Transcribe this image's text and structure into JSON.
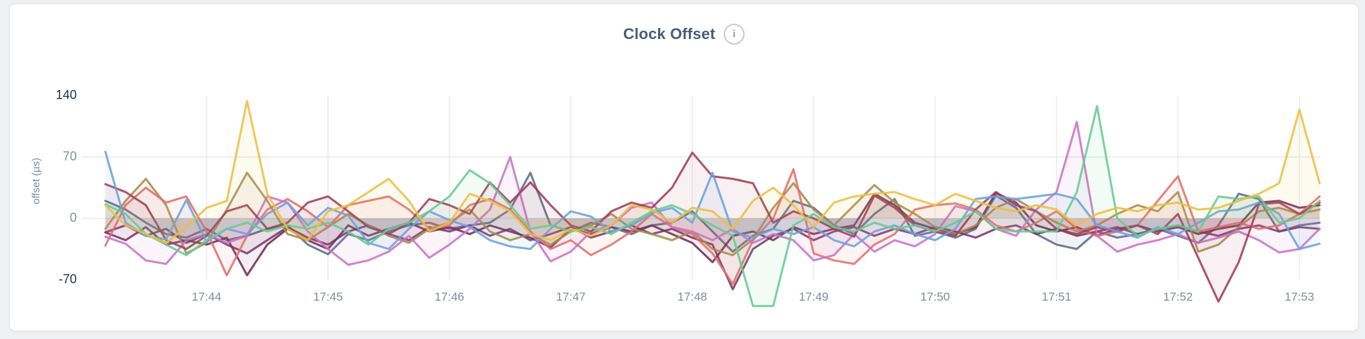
{
  "header": {
    "title": "Clock Offset",
    "info_icon_label": "i"
  },
  "chart_data": {
    "type": "line",
    "title": "Clock Offset",
    "xlabel": "",
    "ylabel": "offset (µs)",
    "ylim": [
      -70,
      140
    ],
    "grid": "on",
    "legend": "none",
    "x_start": "17:43:10",
    "x_step_seconds": 10,
    "x_tick_labels": [
      "17:44",
      "17:45",
      "17:46",
      "17:47",
      "17:48",
      "17:49",
      "17:50",
      "17:51",
      "17:52",
      "17:53"
    ],
    "y_ticks": [
      {
        "value": 140,
        "label": "140",
        "strong": true,
        "grid": false
      },
      {
        "value": 70,
        "label": "70",
        "strong": false,
        "grid": true
      },
      {
        "value": 0,
        "label": "0",
        "strong": false,
        "grid": true
      },
      {
        "value": -70,
        "label": "-70",
        "strong": true,
        "grid": false
      }
    ],
    "series": [
      {
        "name": "series-slate",
        "color": "#5e6b87",
        "values": [
          20,
          10,
          -5,
          -18,
          -22,
          -12,
          -25,
          -20,
          -12,
          -8,
          -30,
          -41,
          -18,
          -25,
          -15,
          -8,
          -5,
          -12,
          -8,
          -5,
          10,
          52,
          -8,
          -15,
          -5,
          -10,
          -18,
          -8,
          -5,
          8,
          -15,
          -38,
          -20,
          -12,
          20,
          12,
          -8,
          -18,
          5,
          22,
          -20,
          -15,
          -22,
          -12,
          26,
          12,
          -18,
          -30,
          -35,
          -15,
          -22,
          -18,
          -12,
          -20,
          -28,
          -8,
          28,
          22,
          -15,
          -8,
          -5
        ]
      },
      {
        "name": "series-violet",
        "color": "#7a3569",
        "values": [
          -16,
          -8,
          -20,
          -12,
          -28,
          -18,
          -30,
          -40,
          -25,
          -10,
          -22,
          -30,
          -15,
          -8,
          -18,
          -25,
          -10,
          -15,
          -8,
          -20,
          -12,
          -25,
          -18,
          -10,
          -22,
          -15,
          -8,
          -18,
          -12,
          -22,
          -30,
          -81,
          -35,
          -20,
          -12,
          -25,
          -15,
          -10,
          -20,
          -12,
          -18,
          -10,
          -15,
          -22,
          -12,
          -8,
          -18,
          -12,
          -20,
          -15,
          -10,
          -18,
          -12,
          -8,
          -15,
          -20,
          -12,
          -8,
          -15,
          -10,
          -12
        ]
      },
      {
        "name": "series-plum",
        "color": "#6f2b57",
        "values": [
          -16,
          -25,
          -10,
          -30,
          -25,
          -30,
          -22,
          -65,
          -30,
          -12,
          -25,
          -35,
          -8,
          -20,
          -12,
          -5,
          -15,
          -10,
          -18,
          -8,
          -15,
          -22,
          -33,
          -12,
          -18,
          -10,
          -15,
          -8,
          -18,
          -28,
          -50,
          -20,
          -15,
          -25,
          -10,
          -18,
          -12,
          -8,
          28,
          15,
          -5,
          -12,
          -18,
          -10,
          29,
          18,
          -8,
          -15,
          -10,
          -20,
          -12,
          -8,
          -15,
          -10,
          -18,
          -12,
          -8,
          18,
          20,
          12,
          15
        ]
      },
      {
        "name": "series-olive",
        "color": "#a78b4b",
        "values": [
          -12,
          20,
          45,
          15,
          -40,
          -28,
          10,
          52,
          20,
          -18,
          -25,
          -10,
          5,
          -8,
          -20,
          -28,
          -12,
          -5,
          10,
          -15,
          -25,
          -18,
          -30,
          -15,
          -8,
          5,
          -12,
          -18,
          -25,
          -15,
          -35,
          -42,
          -24,
          12,
          40,
          10,
          -8,
          15,
          38,
          18,
          5,
          -10,
          -18,
          -8,
          12,
          22,
          8,
          -5,
          -15,
          -8,
          5,
          15,
          8,
          30,
          -38,
          -30,
          -10,
          8,
          12,
          5,
          10
        ]
      },
      {
        "name": "series-salmon",
        "color": "#e26e69",
        "values": [
          -31,
          15,
          35,
          18,
          25,
          -15,
          -65,
          -20,
          10,
          22,
          8,
          -10,
          15,
          20,
          25,
          10,
          -12,
          -8,
          15,
          22,
          10,
          -15,
          -35,
          -25,
          -42,
          -30,
          -15,
          5,
          -10,
          -18,
          -40,
          -75,
          -25,
          0,
          56,
          -40,
          -48,
          -52,
          -30,
          -18,
          10,
          15,
          17,
          10,
          -8,
          -15,
          -5,
          8,
          -12,
          -20,
          -15,
          -8,
          20,
          48,
          -15,
          -10,
          -5,
          -12,
          -8,
          5,
          25
        ]
      },
      {
        "name": "series-orchid",
        "color": "#c873c4",
        "values": [
          -21,
          -29,
          -48,
          -52,
          -25,
          -18,
          -28,
          -20,
          25,
          18,
          -15,
          -35,
          -53,
          -48,
          -38,
          -20,
          -45,
          -30,
          -12,
          10,
          70,
          -15,
          -49,
          -38,
          -15,
          -8,
          12,
          18,
          -10,
          -15,
          -25,
          -12,
          -28,
          -18,
          -25,
          -48,
          -42,
          -18,
          -38,
          -25,
          -32,
          -18,
          14,
          8,
          -12,
          -20,
          10,
          30,
          110,
          -20,
          -38,
          -30,
          -25,
          -18,
          -28,
          -22,
          -15,
          -25,
          -39,
          -35,
          -12
        ]
      },
      {
        "name": "series-maroon",
        "color": "#a13b55",
        "values": [
          39,
          30,
          15,
          -25,
          -35,
          -20,
          8,
          15,
          -12,
          -5,
          18,
          25,
          8,
          -10,
          -18,
          -5,
          22,
          15,
          5,
          41,
          18,
          41,
          15,
          -8,
          -15,
          8,
          18,
          12,
          35,
          75,
          48,
          45,
          40,
          -5,
          8,
          0,
          -12,
          -21,
          26,
          12,
          -8,
          -15,
          -20,
          10,
          30,
          15,
          8,
          -12,
          -18,
          -10,
          -15,
          -8,
          -18,
          5,
          -45,
          -95,
          -50,
          16,
          18,
          5,
          18
        ]
      },
      {
        "name": "series-blue",
        "color": "#6ba2dc",
        "values": [
          76,
          -5,
          -20,
          -24,
          21,
          -27,
          -12,
          -18,
          5,
          18,
          -8,
          12,
          3,
          -28,
          -35,
          -12,
          8,
          -2,
          -10,
          -25,
          -32,
          -35,
          -12,
          8,
          2,
          -15,
          -8,
          6,
          12,
          -5,
          52,
          -15,
          -22,
          -12,
          -18,
          -10,
          -25,
          -32,
          -15,
          -8,
          -18,
          -25,
          -12,
          22,
          25,
          22,
          25,
          28,
          22,
          -8,
          -15,
          -22,
          -10,
          -18,
          -5,
          8,
          10,
          18,
          5,
          -35,
          -29
        ]
      },
      {
        "name": "series-green",
        "color": "#66cb92",
        "values": [
          16,
          5,
          -18,
          -30,
          -42,
          -25,
          -12,
          -5,
          -15,
          -8,
          -12,
          -5,
          -15,
          -30,
          -12,
          -5,
          8,
          25,
          55,
          40,
          15,
          -12,
          -8,
          -15,
          -10,
          -18,
          -5,
          8,
          15,
          5,
          -8,
          -20,
          -100,
          -100,
          -8,
          5,
          -10,
          -15,
          -5,
          -12,
          -8,
          -15,
          -5,
          8,
          -12,
          -15,
          -15,
          -15,
          30,
          128,
          0,
          -20,
          -12,
          -8,
          -15,
          25,
          22,
          25,
          -5,
          0,
          20
        ]
      },
      {
        "name": "series-yellow",
        "color": "#eabf43",
        "values": [
          15,
          -8,
          -18,
          -28,
          -10,
          12,
          20,
          134,
          28,
          -12,
          -25,
          8,
          15,
          30,
          45,
          20,
          -15,
          -5,
          28,
          20,
          8,
          -18,
          -25,
          -12,
          -20,
          -8,
          15,
          10,
          -5,
          12,
          8,
          -12,
          20,
          35,
          15,
          -10,
          18,
          25,
          28,
          30,
          22,
          15,
          28,
          20,
          12,
          8,
          15,
          10,
          -8,
          5,
          12,
          8,
          15,
          18,
          10,
          12,
          20,
          28,
          40,
          124,
          40
        ]
      }
    ]
  }
}
